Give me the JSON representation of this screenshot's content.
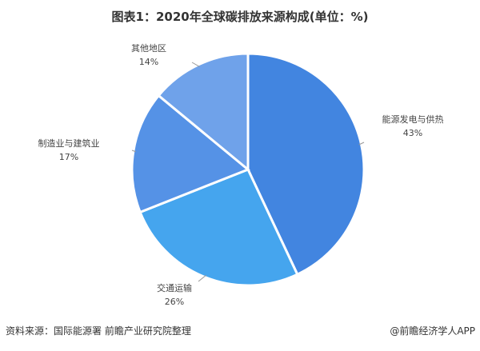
{
  "chart_data": {
    "type": "pie",
    "title": "图表1：2020年全球碳排放来源构成(单位：%)",
    "slices": [
      {
        "label": "能源发电与供热",
        "value": 43,
        "value_label": "43%",
        "color": "#4285e0"
      },
      {
        "label": "交通运输",
        "value": 26,
        "value_label": "26%",
        "color": "#45a5ee"
      },
      {
        "label": "制造业与建筑业",
        "value": 17,
        "value_label": "17%",
        "color": "#5592e6"
      },
      {
        "label": "其他地区",
        "value": 14,
        "value_label": "14%",
        "color": "#6fa2ea"
      }
    ],
    "start": "top",
    "direction": "clockwise"
  },
  "footer": {
    "source": "资料来源：国际能源署 前瞻产业研究院整理",
    "brand": "@前瞻经济学人APP"
  }
}
